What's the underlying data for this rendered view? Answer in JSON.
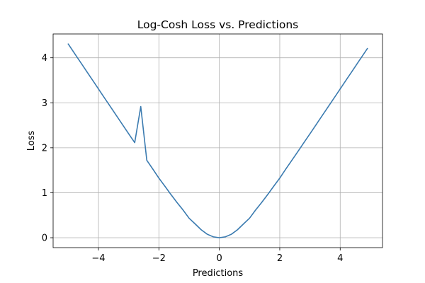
{
  "chart_data": {
    "type": "line",
    "title": "Log-Cosh Loss vs. Predictions",
    "xlabel": "Predictions",
    "ylabel": "Loss",
    "xlim": [
      -5.5,
      5.4
    ],
    "ylim": [
      -0.22,
      4.53
    ],
    "x_ticks": [
      -4,
      -2,
      0,
      2,
      4
    ],
    "y_ticks": [
      0,
      1,
      2,
      3,
      4
    ],
    "x_tick_labels": [
      "−4",
      "−2",
      "0",
      "2",
      "4"
    ],
    "y_tick_labels": [
      "0",
      "1",
      "2",
      "3",
      "4"
    ],
    "grid": true,
    "series": [
      {
        "color": "#3b7bb0",
        "x": [
          -5.0,
          -4.8,
          -4.6,
          -4.4,
          -4.2,
          -4.0,
          -3.8,
          -3.6,
          -3.4,
          -3.2,
          -3.0,
          -2.8,
          -2.6,
          -2.4,
          -2.2,
          -2.0,
          -1.8,
          -1.6,
          -1.4,
          -1.2,
          -1.0,
          -0.8,
          -0.6,
          -0.4,
          -0.2,
          0.0,
          0.2,
          0.4,
          0.6,
          0.8,
          1.0,
          1.2,
          1.4,
          1.6,
          1.8,
          2.0,
          2.2,
          2.4,
          2.6,
          2.8,
          3.0,
          3.2,
          3.4,
          3.6,
          3.8,
          4.0,
          4.2,
          4.4,
          4.6,
          4.8,
          4.9
        ],
        "y": [
          4.307,
          4.107,
          3.907,
          3.707,
          3.508,
          3.308,
          3.108,
          2.909,
          2.71,
          2.51,
          2.312,
          2.114,
          2.916,
          1.721,
          1.526,
          1.325,
          1.144,
          0.96,
          0.783,
          0.616,
          0.434,
          0.307,
          0.177,
          0.078,
          0.02,
          0.0,
          0.02,
          0.078,
          0.177,
          0.307,
          0.434,
          0.616,
          0.783,
          0.96,
          1.144,
          1.325,
          1.526,
          1.721,
          1.916,
          2.114,
          2.312,
          2.51,
          2.71,
          2.909,
          3.108,
          3.308,
          3.508,
          3.707,
          3.907,
          4.107,
          4.207
        ]
      }
    ]
  }
}
